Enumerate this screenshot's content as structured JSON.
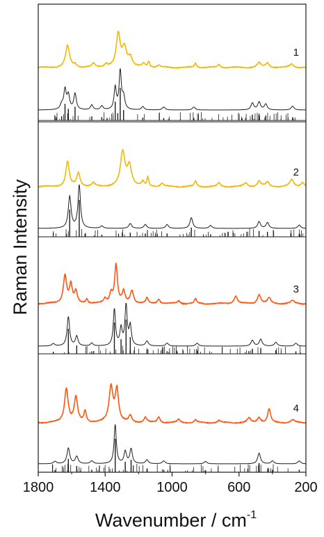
{
  "chart_data": {
    "type": "line",
    "title": "",
    "xlabel": "Wavenumber / cm",
    "xlabel_superscript": "-1",
    "ylabel": "Raman Intensity",
    "xlim": [
      1800,
      200
    ],
    "x_reversed": true,
    "x_ticks": [
      1800,
      1400,
      1000,
      600,
      200
    ],
    "y_ticks_shown": false,
    "grid": false,
    "legend": "none",
    "panels": [
      {
        "label": "1",
        "experimental": {
          "color": "#f5b800",
          "peaks": [
            {
              "x": 1625,
              "height": 0.48,
              "width": 14
            },
            {
              "x": 1580,
              "height": 0.06,
              "width": 12
            },
            {
              "x": 1470,
              "height": 0.08,
              "width": 10
            },
            {
              "x": 1395,
              "height": 0.07,
              "width": 12
            },
            {
              "x": 1322,
              "height": 0.72,
              "width": 14
            },
            {
              "x": 1285,
              "height": 0.42,
              "width": 16
            },
            {
              "x": 1250,
              "height": 0.2,
              "width": 14
            },
            {
              "x": 1170,
              "height": 0.08,
              "width": 10
            },
            {
              "x": 1140,
              "height": 0.13,
              "width": 7
            },
            {
              "x": 1080,
              "height": 0.05,
              "width": 10
            },
            {
              "x": 860,
              "height": 0.1,
              "width": 8
            },
            {
              "x": 720,
              "height": 0.07,
              "width": 10
            },
            {
              "x": 480,
              "height": 0.1,
              "width": 14
            },
            {
              "x": 430,
              "height": 0.1,
              "width": 12
            },
            {
              "x": 285,
              "height": 0.08,
              "width": 14
            }
          ]
        },
        "calculated": {
          "color": "#1a1a1a",
          "peaks": [
            {
              "x": 1660,
              "height": 0.1,
              "width": 10
            },
            {
              "x": 1640,
              "height": 0.4,
              "width": 9
            },
            {
              "x": 1620,
              "height": 0.28,
              "width": 9
            },
            {
              "x": 1580,
              "height": 0.33,
              "width": 9
            },
            {
              "x": 1480,
              "height": 0.1,
              "width": 9
            },
            {
              "x": 1420,
              "height": 0.08,
              "width": 9
            },
            {
              "x": 1340,
              "height": 0.45,
              "width": 8
            },
            {
              "x": 1310,
              "height": 0.78,
              "width": 8
            },
            {
              "x": 1290,
              "height": 0.25,
              "width": 9
            },
            {
              "x": 1175,
              "height": 0.07,
              "width": 9
            },
            {
              "x": 1050,
              "height": 0.06,
              "width": 10
            },
            {
              "x": 870,
              "height": 0.06,
              "width": 10
            },
            {
              "x": 520,
              "height": 0.14,
              "width": 10
            },
            {
              "x": 480,
              "height": 0.16,
              "width": 10
            },
            {
              "x": 440,
              "height": 0.12,
              "width": 10
            },
            {
              "x": 280,
              "height": 0.08,
              "width": 10
            }
          ]
        }
      },
      {
        "label": "2",
        "experimental": {
          "color": "#f5b800",
          "peaks": [
            {
              "x": 1625,
              "height": 0.55,
              "width": 12
            },
            {
              "x": 1560,
              "height": 0.3,
              "width": 12
            },
            {
              "x": 1470,
              "height": 0.08,
              "width": 10
            },
            {
              "x": 1295,
              "height": 0.75,
              "width": 16
            },
            {
              "x": 1255,
              "height": 0.45,
              "width": 16
            },
            {
              "x": 1175,
              "height": 0.1,
              "width": 8
            },
            {
              "x": 1145,
              "height": 0.2,
              "width": 6
            },
            {
              "x": 1060,
              "height": 0.07,
              "width": 10
            },
            {
              "x": 860,
              "height": 0.12,
              "width": 8
            },
            {
              "x": 720,
              "height": 0.08,
              "width": 10
            },
            {
              "x": 560,
              "height": 0.08,
              "width": 12
            },
            {
              "x": 480,
              "height": 0.12,
              "width": 12
            },
            {
              "x": 430,
              "height": 0.1,
              "width": 12
            },
            {
              "x": 285,
              "height": 0.15,
              "width": 14
            },
            {
              "x": 220,
              "height": 0.1,
              "width": 12
            }
          ]
        },
        "calculated": {
          "color": "#1a1a1a",
          "peaks": [
            {
              "x": 1612,
              "height": 0.65,
              "width": 10
            },
            {
              "x": 1555,
              "height": 0.88,
              "width": 9
            },
            {
              "x": 1420,
              "height": 0.05,
              "width": 10
            },
            {
              "x": 1250,
              "height": 0.1,
              "width": 10
            },
            {
              "x": 1160,
              "height": 0.08,
              "width": 10
            },
            {
              "x": 1030,
              "height": 0.08,
              "width": 10
            },
            {
              "x": 885,
              "height": 0.22,
              "width": 10
            },
            {
              "x": 770,
              "height": 0.06,
              "width": 10
            },
            {
              "x": 480,
              "height": 0.14,
              "width": 10
            },
            {
              "x": 430,
              "height": 0.12,
              "width": 10
            },
            {
              "x": 240,
              "height": 0.07,
              "width": 10
            }
          ]
        }
      },
      {
        "label": "3",
        "experimental": {
          "color": "#ff5511",
          "peaks": [
            {
              "x": 1640,
              "height": 0.62,
              "width": 12
            },
            {
              "x": 1605,
              "height": 0.4,
              "width": 10
            },
            {
              "x": 1575,
              "height": 0.25,
              "width": 10
            },
            {
              "x": 1510,
              "height": 0.1,
              "width": 8
            },
            {
              "x": 1400,
              "height": 0.1,
              "width": 10
            },
            {
              "x": 1365,
              "height": 0.22,
              "width": 10
            },
            {
              "x": 1335,
              "height": 0.85,
              "width": 10
            },
            {
              "x": 1290,
              "height": 0.25,
              "width": 10
            },
            {
              "x": 1240,
              "height": 0.28,
              "width": 12
            },
            {
              "x": 1150,
              "height": 0.12,
              "width": 8
            },
            {
              "x": 1080,
              "height": 0.1,
              "width": 10
            },
            {
              "x": 960,
              "height": 0.06,
              "width": 10
            },
            {
              "x": 860,
              "height": 0.1,
              "width": 8
            },
            {
              "x": 620,
              "height": 0.17,
              "width": 12
            },
            {
              "x": 480,
              "height": 0.2,
              "width": 12
            },
            {
              "x": 420,
              "height": 0.12,
              "width": 12
            },
            {
              "x": 280,
              "height": 0.06,
              "width": 14
            }
          ]
        },
        "calculated": {
          "color": "#1a1a1a",
          "peaks": [
            {
              "x": 1710,
              "height": 0.05,
              "width": 10
            },
            {
              "x": 1620,
              "height": 0.6,
              "width": 9
            },
            {
              "x": 1570,
              "height": 0.2,
              "width": 9
            },
            {
              "x": 1480,
              "height": 0.06,
              "width": 9
            },
            {
              "x": 1345,
              "height": 0.75,
              "width": 8
            },
            {
              "x": 1305,
              "height": 0.35,
              "width": 8
            },
            {
              "x": 1275,
              "height": 0.82,
              "width": 8
            },
            {
              "x": 1250,
              "height": 0.4,
              "width": 8
            },
            {
              "x": 1150,
              "height": 0.1,
              "width": 10
            },
            {
              "x": 1030,
              "height": 0.06,
              "width": 10
            },
            {
              "x": 850,
              "height": 0.06,
              "width": 10
            },
            {
              "x": 520,
              "height": 0.12,
              "width": 10
            },
            {
              "x": 470,
              "height": 0.14,
              "width": 10
            },
            {
              "x": 380,
              "height": 0.08,
              "width": 10
            },
            {
              "x": 260,
              "height": 0.06,
              "width": 10
            }
          ]
        }
      },
      {
        "label": "4",
        "experimental": {
          "color": "#ff5511",
          "peaks": [
            {
              "x": 1632,
              "height": 0.75,
              "width": 13
            },
            {
              "x": 1575,
              "height": 0.55,
              "width": 12
            },
            {
              "x": 1520,
              "height": 0.25,
              "width": 8
            },
            {
              "x": 1365,
              "height": 0.78,
              "width": 14
            },
            {
              "x": 1330,
              "height": 0.72,
              "width": 12
            },
            {
              "x": 1250,
              "height": 0.15,
              "width": 10
            },
            {
              "x": 1160,
              "height": 0.12,
              "width": 10
            },
            {
              "x": 1080,
              "height": 0.12,
              "width": 10
            },
            {
              "x": 960,
              "height": 0.07,
              "width": 10
            },
            {
              "x": 860,
              "height": 0.06,
              "width": 10
            },
            {
              "x": 720,
              "height": 0.05,
              "width": 10
            },
            {
              "x": 540,
              "height": 0.1,
              "width": 12
            },
            {
              "x": 480,
              "height": 0.12,
              "width": 12
            },
            {
              "x": 420,
              "height": 0.3,
              "width": 10
            },
            {
              "x": 280,
              "height": 0.06,
              "width": 14
            }
          ]
        },
        "calculated": {
          "color": "#1a1a1a",
          "peaks": [
            {
              "x": 1700,
              "height": 0.05,
              "width": 10
            },
            {
              "x": 1620,
              "height": 0.32,
              "width": 10
            },
            {
              "x": 1570,
              "height": 0.15,
              "width": 10
            },
            {
              "x": 1480,
              "height": 0.06,
              "width": 10
            },
            {
              "x": 1340,
              "height": 0.8,
              "width": 8
            },
            {
              "x": 1280,
              "height": 0.25,
              "width": 9
            },
            {
              "x": 1245,
              "height": 0.3,
              "width": 9
            },
            {
              "x": 1150,
              "height": 0.08,
              "width": 10
            },
            {
              "x": 1050,
              "height": 0.06,
              "width": 10
            },
            {
              "x": 800,
              "height": 0.05,
              "width": 10
            },
            {
              "x": 480,
              "height": 0.22,
              "width": 10
            },
            {
              "x": 400,
              "height": 0.06,
              "width": 10
            },
            {
              "x": 240,
              "height": 0.06,
              "width": 10
            }
          ]
        }
      }
    ]
  }
}
